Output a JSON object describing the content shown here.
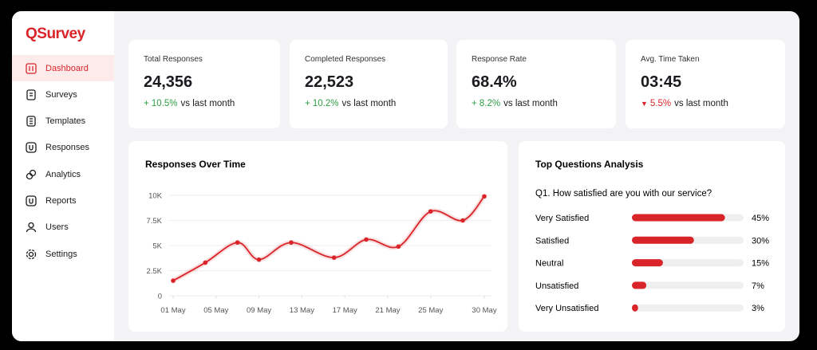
{
  "app": {
    "logo": "QSurvey",
    "nav": [
      "Dashboard",
      "Surveys",
      "Templates",
      "Responses",
      "Analytics",
      "Reports",
      "Users",
      "Settings"
    ],
    "active": 0
  },
  "kpis": [
    {
      "label": "Total Responses",
      "value": "24,356",
      "change": "+ 10.5%",
      "note": "vs last month",
      "trend": "up"
    },
    {
      "label": "Completed Responses",
      "value": "22,523",
      "change": "+ 10.2%",
      "note": "vs last month",
      "trend": "up"
    },
    {
      "label": "Response Rate",
      "value": "68.4%",
      "change": "+ 8.2%",
      "note": "vs last month",
      "trend": "up"
    },
    {
      "label": "Avg. Time Taken",
      "value": "03:45",
      "change": "5.5%",
      "note": "vs last month",
      "trend": "down"
    }
  ],
  "chart_data": [
    {
      "type": "line",
      "title": "Responses Over Time",
      "color": "#d9252a",
      "grid": true,
      "x": [
        1,
        4,
        7,
        9,
        12,
        16,
        19,
        22,
        25,
        28,
        30
      ],
      "values": [
        1500,
        3300,
        5300,
        3600,
        5300,
        3800,
        5600,
        4900,
        8400,
        7500,
        9900
      ],
      "xlim": [
        1,
        30
      ],
      "xticks": [
        {
          "value": 1,
          "label": "01 May"
        },
        {
          "value": 5,
          "label": "05 May"
        },
        {
          "value": 9,
          "label": "09 May"
        },
        {
          "value": 13,
          "label": "13 May"
        },
        {
          "value": 17,
          "label": "17 May"
        },
        {
          "value": 21,
          "label": "21 May"
        },
        {
          "value": 25,
          "label": "25 May"
        },
        {
          "value": 30,
          "label": "30 May"
        }
      ],
      "ylim": [
        0,
        10000
      ],
      "yticks": [
        0,
        {
          "value": 2500,
          "label": "2.5K"
        },
        {
          "value": 5000,
          "label": "5K"
        },
        {
          "value": 7500,
          "label": "7.5K"
        },
        {
          "value": 10000,
          "label": "10K"
        }
      ]
    },
    {
      "type": "hbar",
      "title": "Top Questions Analysis",
      "subtitle": "Q1. How satisfied are you with our service?",
      "color": "#d9252a",
      "categories": [
        "Very Satisfied",
        "Satisfied",
        "Neutral",
        "Unsatisfied",
        "Very Unsatisfied"
      ],
      "values": [
        45,
        30,
        15,
        7,
        3
      ],
      "value_labels": [
        "45%",
        "30%",
        "15%",
        "7%",
        "3%"
      ],
      "xlim": [
        0,
        54
      ]
    }
  ]
}
